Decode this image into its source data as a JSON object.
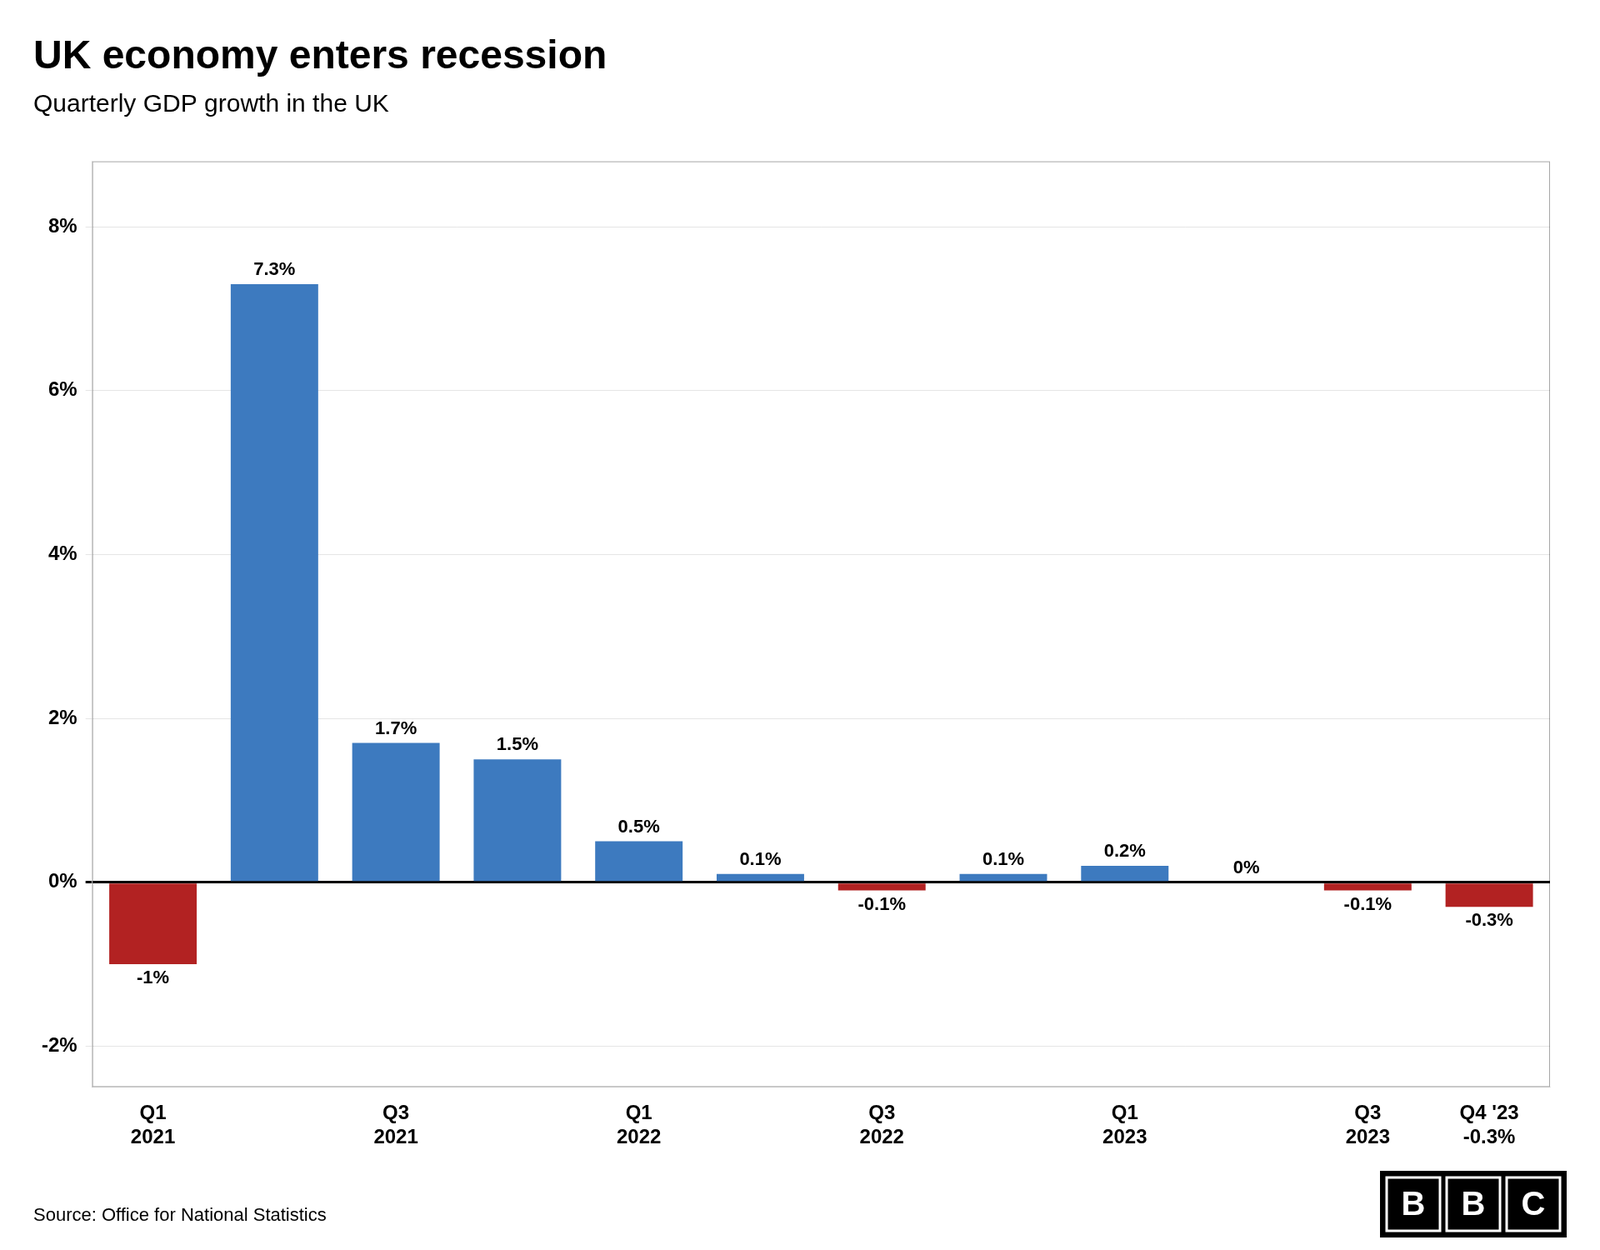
{
  "chart_data": {
    "type": "bar",
    "title": "UK economy enters recession",
    "subtitle": "Quarterly GDP growth in the UK",
    "source": "Source: Office for National Statistics",
    "logo": "BBC",
    "categories": [
      "Q1\n2021",
      null,
      "Q3\n2021",
      null,
      "Q1\n2022",
      null,
      "Q3\n2022",
      null,
      "Q1\n2023",
      null,
      "Q3\n2023",
      "Q4 '23\n-0.3%"
    ],
    "values": [
      -1.0,
      7.3,
      1.7,
      1.5,
      0.5,
      0.1,
      -0.1,
      0.1,
      0.2,
      0.0,
      -0.1,
      -0.3
    ],
    "value_labels": [
      "-1%",
      "7.3%",
      "1.7%",
      "1.5%",
      "0.5%",
      "0.1%",
      "-0.1%",
      "0.1%",
      "0.2%",
      "0%",
      "-0.1%",
      "-0.3%"
    ],
    "data_labels": true,
    "colors": [
      "#b22222",
      "#3d7abf",
      "#3d7abf",
      "#3d7abf",
      "#3d7abf",
      "#3d7abf",
      "#b22222",
      "#3d7abf",
      "#3d7abf",
      "#3d7abf",
      "#b22222",
      "#b22222"
    ],
    "ylim": [
      -2.5,
      8.8
    ],
    "yticks": [
      {
        "value": -2,
        "label": "-2%"
      },
      {
        "value": 0,
        "label": "0%"
      },
      {
        "value": 2,
        "label": "2%"
      },
      {
        "value": 4,
        "label": "4%"
      },
      {
        "value": 6,
        "label": "6%"
      },
      {
        "value": 8,
        "label": "8%"
      }
    ],
    "grid": true
  }
}
